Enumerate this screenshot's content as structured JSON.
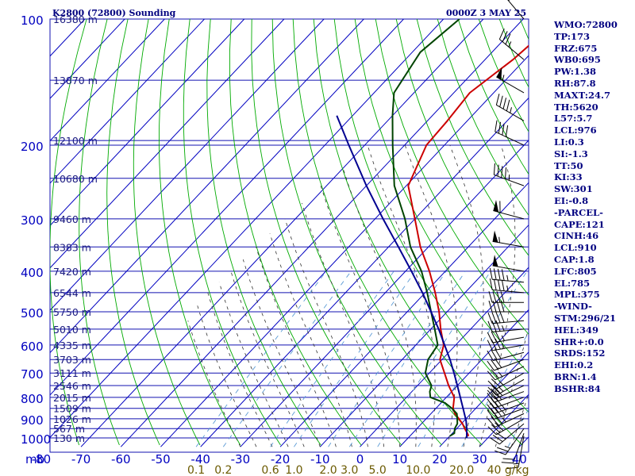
{
  "header": {
    "station_title": "K2800 (72800) Sounding",
    "valid_time": "0000Z  3 MAY 25"
  },
  "indices": [
    "WMO:72800",
    "TP:173",
    "FRZ:675",
    "WB0:695",
    "PW:1.38",
    "RH:87.8",
    "MAXT:24.7",
    "TH:5620",
    "L57:5.7",
    "LCL:976",
    "LI:0.3",
    "SI:-1.3",
    "TT:50",
    "KI:33",
    "SW:301",
    "EI:-0.8",
    "-PARCEL-",
    "CAPE:121",
    "CINH:46",
    "LCL:910",
    "CAP:1.8",
    "LFC:805",
    "EL:785",
    "MPL:375",
    "-WIND-",
    "STM:296/21",
    "HEL:349",
    "SHR+:0.0",
    "SRDS:152",
    "EHI:0.2",
    "BRN:1.4",
    "BSHR:84"
  ],
  "colors": {
    "grid": "#1010b0",
    "isotherm": "#0000c0",
    "dry_adiabat": "#00aa00",
    "moist_adiabat": "#333333",
    "mixing_ratio": "#5b9bd5",
    "temperature": "#cc0000",
    "dewpoint": "#004400",
    "parcel": "#000090",
    "wind_barb": "#000000",
    "mixing_ratio_labels": "#6b5a00",
    "indices_text": "#000080"
  },
  "chart_data": {
    "type": "skew-t log-p sounding",
    "x_unit_label": "mb",
    "pressure_levels_mb": [
      100,
      200,
      300,
      400,
      500,
      600,
      700,
      800,
      900,
      1000
    ],
    "pressure_range_mb": [
      100,
      1050
    ],
    "temperature_ticks_c": [
      -80,
      -70,
      -60,
      -50,
      -40,
      -30,
      -20,
      -10,
      0,
      10,
      20,
      30,
      40
    ],
    "temperature_range_c": [
      -80,
      45
    ],
    "height_labels": [
      {
        "p": 100,
        "label": "16380 m"
      },
      {
        "p": 140,
        "label": "13870 m"
      },
      {
        "p": 195,
        "label": "12100 m"
      },
      {
        "p": 240,
        "label": "10680 m"
      },
      {
        "p": 300,
        "label": "9460 m"
      },
      {
        "p": 350,
        "label": "8383 m"
      },
      {
        "p": 400,
        "label": "7420 m"
      },
      {
        "p": 450,
        "label": "6544 m"
      },
      {
        "p": 500,
        "label": "5750 m"
      },
      {
        "p": 550,
        "label": "5010 m"
      },
      {
        "p": 600,
        "label": "4335 m"
      },
      {
        "p": 650,
        "label": "3703 m"
      },
      {
        "p": 700,
        "label": "3111 m"
      },
      {
        "p": 750,
        "label": "2546 m"
      },
      {
        "p": 800,
        "label": "2015 m"
      },
      {
        "p": 850,
        "label": "1509 m"
      },
      {
        "p": 900,
        "label": "1026 m"
      },
      {
        "p": 950,
        "label": "567 m"
      },
      {
        "p": 1000,
        "label": "130 m"
      }
    ],
    "mixing_ratio_labels": [
      "0.1",
      "0.2",
      "0.6",
      "1.0",
      "2.0",
      "3.0",
      "5.0",
      "10.0",
      "20.0",
      "40 g/kg"
    ],
    "mixing_ratio_values": [
      0.1,
      0.2,
      0.6,
      1.0,
      2.0,
      3.0,
      5.0,
      10.0,
      20.0,
      40.0
    ],
    "series": [
      {
        "name": "temperature",
        "points": [
          [
            990,
            24.7
          ],
          [
            975,
            23.8
          ],
          [
            950,
            22.0
          ],
          [
            925,
            20.3
          ],
          [
            900,
            18.2
          ],
          [
            875,
            16.0
          ],
          [
            850,
            14.3
          ],
          [
            800,
            12.0
          ],
          [
            750,
            7.8
          ],
          [
            700,
            3.8
          ],
          [
            650,
            -0.5
          ],
          [
            600,
            -3.0
          ],
          [
            550,
            -7.5
          ],
          [
            500,
            -12.0
          ],
          [
            450,
            -17.5
          ],
          [
            400,
            -24.0
          ],
          [
            350,
            -32.0
          ],
          [
            300,
            -40.0
          ],
          [
            250,
            -49.5
          ],
          [
            200,
            -54.5
          ],
          [
            175,
            -55.0
          ],
          [
            150,
            -56.0
          ],
          [
            125,
            -53.0
          ],
          [
            100,
            -51.0
          ]
        ]
      },
      {
        "name": "dewpoint",
        "points": [
          [
            990,
            20.0
          ],
          [
            975,
            20.5
          ],
          [
            950,
            19.5
          ],
          [
            925,
            19.0
          ],
          [
            900,
            17.8
          ],
          [
            875,
            16.5
          ],
          [
            850,
            14.0
          ],
          [
            825,
            11.0
          ],
          [
            800,
            6.0
          ],
          [
            775,
            4.5
          ],
          [
            750,
            3.5
          ],
          [
            700,
            -1.0
          ],
          [
            650,
            -3.5
          ],
          [
            600,
            -4.5
          ],
          [
            550,
            -9.0
          ],
          [
            500,
            -14.0
          ],
          [
            450,
            -19.5
          ],
          [
            400,
            -26.0
          ],
          [
            350,
            -34.5
          ],
          [
            300,
            -42.5
          ],
          [
            250,
            -53.0
          ],
          [
            200,
            -63.0
          ],
          [
            170,
            -70.0
          ],
          [
            150,
            -75.0
          ],
          [
            120,
            -78.0
          ],
          [
            100,
            -76.0
          ]
        ]
      },
      {
        "name": "parcel",
        "points": [
          [
            1000,
            24.7
          ],
          [
            950,
            22.5
          ],
          [
            910,
            20.5
          ],
          [
            850,
            16.8
          ],
          [
            800,
            13.5
          ],
          [
            750,
            10.0
          ],
          [
            700,
            6.2
          ],
          [
            650,
            2.0
          ],
          [
            600,
            -2.8
          ],
          [
            550,
            -8.0
          ],
          [
            500,
            -14.0
          ],
          [
            450,
            -20.7
          ],
          [
            400,
            -28.5
          ],
          [
            350,
            -37.5
          ],
          [
            300,
            -48.0
          ],
          [
            250,
            -60.0
          ],
          [
            200,
            -74.0
          ],
          [
            170,
            -84.0
          ]
        ]
      }
    ],
    "wind_barbs": [
      {
        "p": 990,
        "dir": 190,
        "spd": 15
      },
      {
        "p": 975,
        "dir": 200,
        "spd": 20
      },
      {
        "p": 950,
        "dir": 215,
        "spd": 25
      },
      {
        "p": 925,
        "dir": 230,
        "spd": 30
      },
      {
        "p": 900,
        "dir": 240,
        "spd": 30
      },
      {
        "p": 875,
        "dir": 245,
        "spd": 35
      },
      {
        "p": 850,
        "dir": 250,
        "spd": 35
      },
      {
        "p": 825,
        "dir": 250,
        "spd": 35
      },
      {
        "p": 800,
        "dir": 250,
        "spd": 30
      },
      {
        "p": 775,
        "dir": 250,
        "spd": 30
      },
      {
        "p": 750,
        "dir": 245,
        "spd": 30
      },
      {
        "p": 725,
        "dir": 240,
        "spd": 25
      },
      {
        "p": 700,
        "dir": 240,
        "spd": 25
      },
      {
        "p": 675,
        "dir": 245,
        "spd": 25
      },
      {
        "p": 650,
        "dir": 250,
        "spd": 30
      },
      {
        "p": 625,
        "dir": 255,
        "spd": 30
      },
      {
        "p": 600,
        "dir": 260,
        "spd": 35
      },
      {
        "p": 575,
        "dir": 260,
        "spd": 35
      },
      {
        "p": 550,
        "dir": 265,
        "spd": 35
      },
      {
        "p": 525,
        "dir": 265,
        "spd": 40
      },
      {
        "p": 500,
        "dir": 270,
        "spd": 40
      },
      {
        "p": 475,
        "dir": 270,
        "spd": 40
      },
      {
        "p": 450,
        "dir": 275,
        "spd": 45
      },
      {
        "p": 425,
        "dir": 275,
        "spd": 45
      },
      {
        "p": 400,
        "dir": 280,
        "spd": 50
      },
      {
        "p": 350,
        "dir": 280,
        "spd": 55
      },
      {
        "p": 300,
        "dir": 285,
        "spd": 60
      },
      {
        "p": 250,
        "dir": 290,
        "spd": 45
      },
      {
        "p": 200,
        "dir": 295,
        "spd": 40
      },
      {
        "p": 175,
        "dir": 300,
        "spd": 45
      },
      {
        "p": 150,
        "dir": 300,
        "spd": 55
      },
      {
        "p": 125,
        "dir": 310,
        "spd": 35
      },
      {
        "p": 100,
        "dir": 320,
        "spd": 30
      }
    ]
  }
}
